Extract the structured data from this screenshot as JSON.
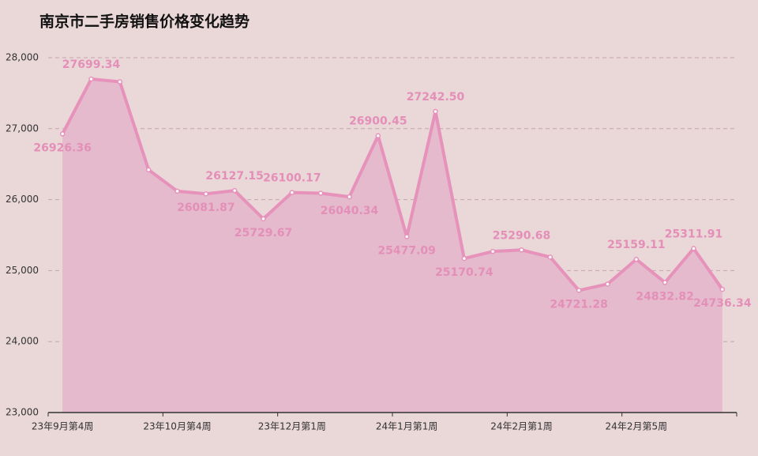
{
  "chart_data": {
    "type": "area",
    "title": "南京市二手房销售价格变化趋势",
    "categories": [
      "23年9月第4周",
      null,
      null,
      null,
      "23年10月第4周",
      null,
      null,
      null,
      "23年12月第1周",
      null,
      null,
      null,
      "24年1月第1周",
      null,
      null,
      null,
      "24年2月第1周",
      null,
      null,
      null,
      "24年2月第5周",
      null,
      null,
      null
    ],
    "series": [
      {
        "name": null,
        "color": "#e692bb",
        "values": [
          26926.36,
          27699.34,
          27660,
          26420,
          26120,
          26081.87,
          26127.15,
          25729.67,
          26100.17,
          26090,
          26040.34,
          26900.45,
          25477.09,
          27242.5,
          25170.74,
          25270,
          25290.68,
          25190,
          24721.28,
          24810,
          25159.11,
          24832.82,
          25311.91,
          24736.34
        ],
        "value_labels": [
          "26926.36",
          "27699.34",
          null,
          null,
          null,
          "26081.87",
          "26127.15",
          "25729.67",
          "26100.17",
          null,
          "26040.34",
          "26900.45",
          "25477.09",
          "27242.50",
          "25170.74",
          null,
          "25290.68",
          null,
          "24721.28",
          null,
          "25159.11",
          "24832.82",
          "25311.91",
          "24736.34"
        ]
      }
    ],
    "ylim": [
      23000,
      28000
    ],
    "yticks": [
      {
        "value": 23000,
        "label": "23,000"
      },
      {
        "value": 24000,
        "label": "24,000"
      },
      {
        "value": 25000,
        "label": "25,000"
      },
      {
        "value": 26000,
        "label": "26,000"
      },
      {
        "value": 27000,
        "label": "27,000"
      },
      {
        "value": 28000,
        "label": "28,000"
      }
    ],
    "grid": true
  }
}
